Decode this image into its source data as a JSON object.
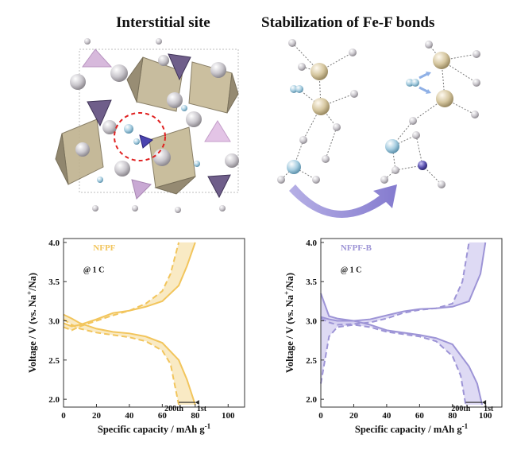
{
  "titles": {
    "left": "Interstitial site",
    "right": "Stabilization of Fe-F bonds"
  },
  "colors": {
    "nfpf": "#f2c55c",
    "nfpf_fill": "#f7e3b0",
    "nfpfb": "#9d94d6",
    "nfpfb_fill": "#d3cdf0",
    "fe_polyhedron": "#b8ac8e",
    "p_polyhedron": "#6a5a8a",
    "na_atom": "#c8c4c8",
    "f_atom": "#a8cde0",
    "fe_atom": "#d6c8a0",
    "arrow": "#9b8fd6",
    "dash_circle": "#e02020"
  },
  "chart_data": [
    {
      "type": "line",
      "label": "NFPF",
      "rate": "@ 1 C",
      "xlabel": "Specific capacity / mAh g",
      "xlabel_sup": "-1",
      "ylabel_prefix": "Voltage / V (vs. Na",
      "ylabel_sup": "+",
      "ylabel_suffix": "/Na)",
      "xlim": [
        0,
        110
      ],
      "ylim": [
        1.9,
        4.05
      ],
      "xticks": [
        0,
        20,
        40,
        60,
        80,
        100
      ],
      "yticks": [
        2.0,
        2.5,
        3.0,
        3.5,
        4.0
      ],
      "xtick_labels": [
        "0",
        "20",
        "40",
        "60",
        "80",
        "100"
      ],
      "ytick_labels": [
        "2.0",
        "2.5",
        "3.0",
        "3.5",
        "4.0"
      ],
      "arrow_labels": {
        "from": "200th",
        "to": "1st"
      },
      "series": [
        {
          "style": "solid",
          "segment": "charge",
          "x": [
            0,
            5,
            10,
            20,
            30,
            40,
            50,
            60,
            70,
            75,
            80
          ],
          "y": [
            2.97,
            2.93,
            2.95,
            3.02,
            3.1,
            3.13,
            3.18,
            3.25,
            3.45,
            3.7,
            4.0
          ]
        },
        {
          "style": "solid",
          "segment": "discharge",
          "x": [
            0,
            5,
            10,
            20,
            30,
            40,
            50,
            60,
            70,
            75,
            80
          ],
          "y": [
            3.08,
            3.03,
            2.97,
            2.9,
            2.86,
            2.84,
            2.8,
            2.72,
            2.5,
            2.25,
            1.93
          ]
        },
        {
          "style": "dashed",
          "segment": "charge",
          "x": [
            0,
            5,
            10,
            20,
            30,
            40,
            50,
            60,
            65,
            70
          ],
          "y": [
            2.92,
            2.88,
            2.93,
            3.0,
            3.07,
            3.13,
            3.22,
            3.38,
            3.6,
            4.0
          ]
        },
        {
          "style": "dashed",
          "segment": "discharge",
          "x": [
            0,
            5,
            10,
            20,
            30,
            40,
            50,
            60,
            65,
            70
          ],
          "y": [
            3.02,
            2.95,
            2.9,
            2.85,
            2.82,
            2.79,
            2.74,
            2.62,
            2.45,
            1.93
          ]
        }
      ]
    },
    {
      "type": "line",
      "label": "NFPF-B",
      "rate": "@ 1 C",
      "xlabel": "Specific capacity / mAh g",
      "xlabel_sup": "-1",
      "ylabel_prefix": "Voltage / V (vs. Na",
      "ylabel_sup": "+",
      "ylabel_suffix": "/Na)",
      "xlim": [
        0,
        110
      ],
      "ylim": [
        1.9,
        4.05
      ],
      "xticks": [
        0,
        20,
        40,
        60,
        80,
        100
      ],
      "yticks": [
        2.0,
        2.5,
        3.0,
        3.5,
        4.0
      ],
      "xtick_labels": [
        "0",
        "20",
        "40",
        "60",
        "80",
        "100"
      ],
      "ytick_labels": [
        "2.0",
        "2.5",
        "3.0",
        "3.5",
        "4.0"
      ],
      "arrow_labels": {
        "from": "200th",
        "to": "1st"
      },
      "series": [
        {
          "style": "solid",
          "segment": "charge",
          "x": [
            0,
            5,
            10,
            20,
            30,
            40,
            50,
            60,
            70,
            80,
            90,
            97,
            100
          ],
          "y": [
            3.05,
            3.02,
            3.0,
            3.0,
            3.02,
            3.07,
            3.12,
            3.15,
            3.16,
            3.18,
            3.25,
            3.6,
            4.0
          ]
        },
        {
          "style": "solid",
          "segment": "discharge",
          "x": [
            0,
            5,
            10,
            20,
            30,
            40,
            50,
            60,
            70,
            80,
            90,
            95,
            98
          ],
          "y": [
            3.35,
            3.06,
            3.03,
            3.0,
            2.95,
            2.88,
            2.85,
            2.82,
            2.78,
            2.7,
            2.42,
            2.2,
            1.93
          ]
        },
        {
          "style": "dashed",
          "segment": "charge",
          "x": [
            0,
            5,
            10,
            20,
            30,
            40,
            50,
            60,
            70,
            80,
            86,
            90
          ],
          "y": [
            3.03,
            2.98,
            2.95,
            2.96,
            2.98,
            3.03,
            3.1,
            3.14,
            3.16,
            3.22,
            3.5,
            4.0
          ]
        },
        {
          "style": "dashed",
          "segment": "discharge",
          "x": [
            0,
            5,
            10,
            20,
            30,
            40,
            50,
            60,
            70,
            80,
            85,
            88
          ],
          "y": [
            2.2,
            2.8,
            2.92,
            2.95,
            2.92,
            2.86,
            2.83,
            2.8,
            2.74,
            2.55,
            2.3,
            1.93
          ]
        }
      ]
    }
  ]
}
